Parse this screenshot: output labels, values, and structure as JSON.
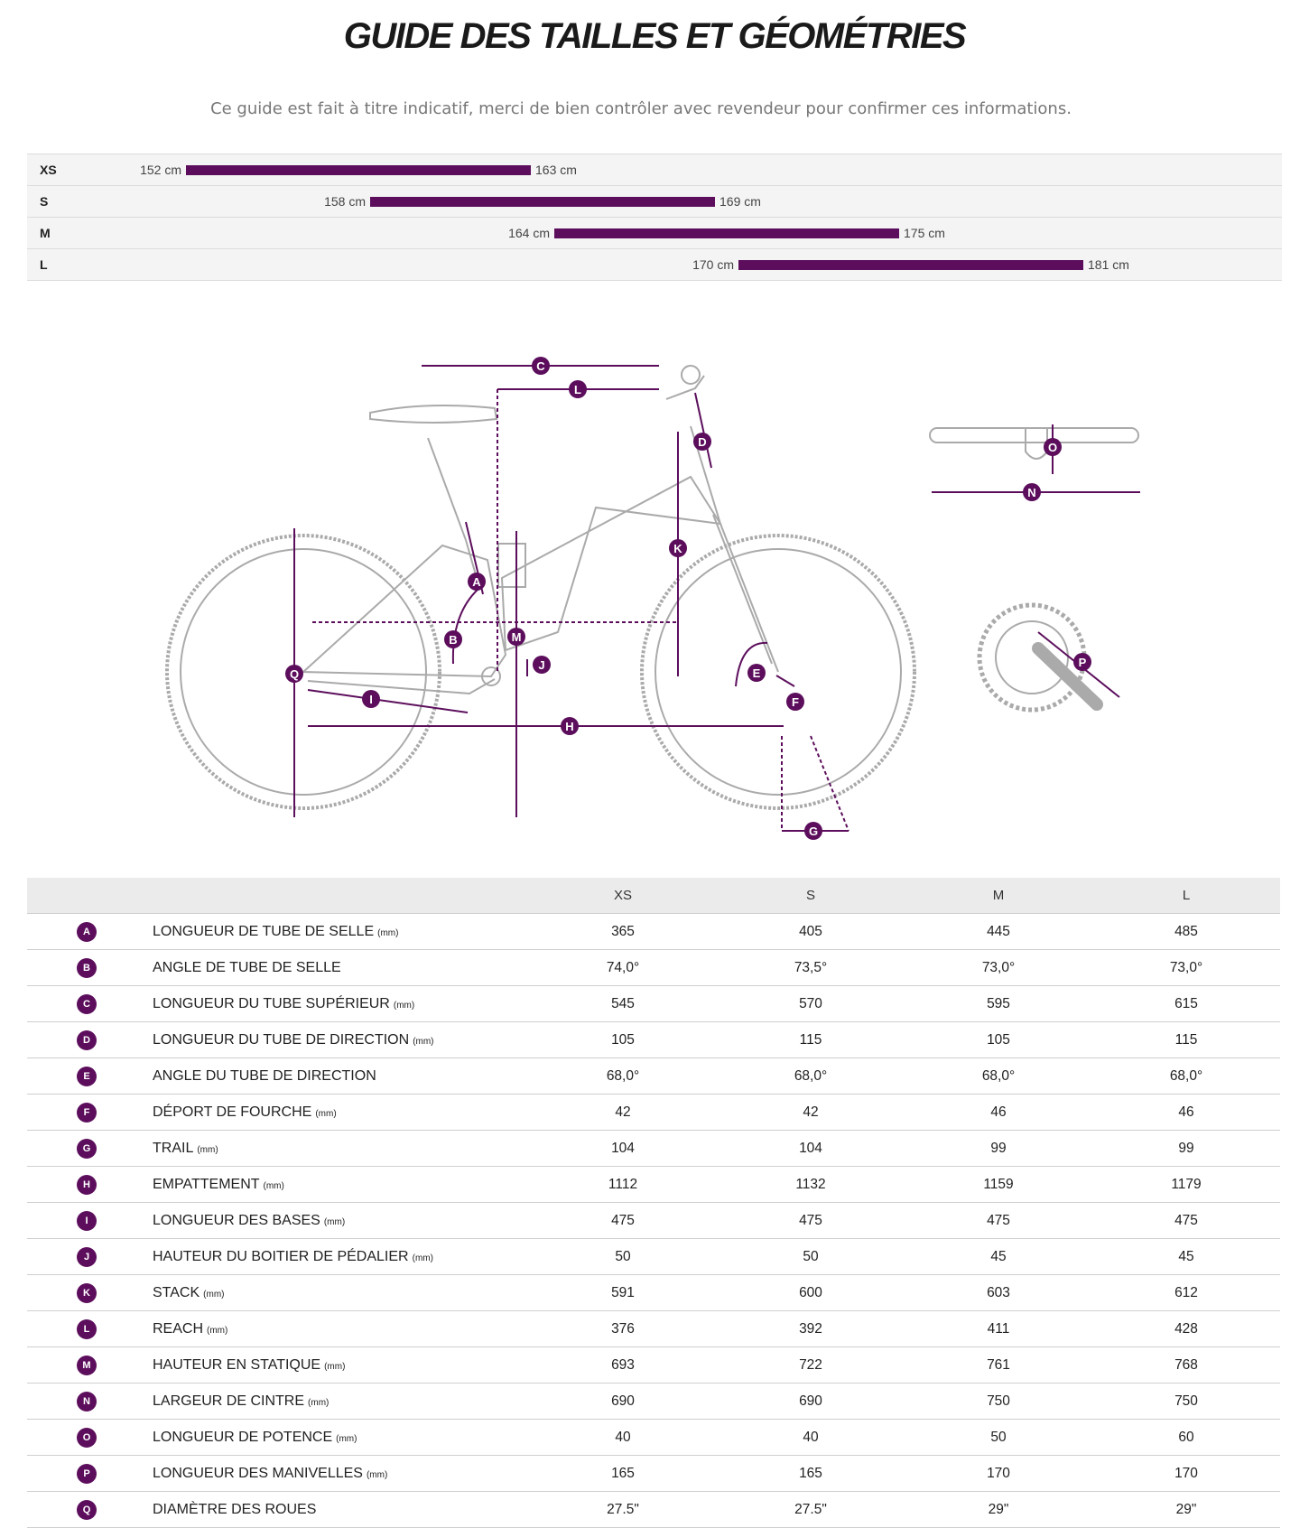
{
  "header": {
    "title": "GUIDE DES TAILLES ET GÉOMÉTRIES",
    "subtitle": "Ce guide est fait à titre indicatif, merci de bien contrôler avec revendeur pour confirmer ces informations."
  },
  "size_guide": {
    "rows": [
      {
        "size": "XS",
        "min": "152 cm",
        "max": "163 cm"
      },
      {
        "size": "S",
        "min": "158 cm",
        "max": "169 cm"
      },
      {
        "size": "M",
        "min": "164 cm",
        "max": "175 cm"
      },
      {
        "size": "L",
        "min": "170 cm",
        "max": "181 cm"
      }
    ]
  },
  "geometry": {
    "columns": [
      "XS",
      "S",
      "M",
      "L"
    ],
    "rows": [
      {
        "letter": "A",
        "label": "LONGUEUR DE TUBE DE SELLE",
        "unit": "(mm)",
        "values": [
          "365",
          "405",
          "445",
          "485"
        ]
      },
      {
        "letter": "B",
        "label": "ANGLE DE TUBE DE SELLE",
        "values": [
          "74,0°",
          "73,5°",
          "73,0°",
          "73,0°"
        ]
      },
      {
        "letter": "C",
        "label": "LONGUEUR DU TUBE SUPÉRIEUR",
        "unit": "(mm)",
        "values": [
          "545",
          "570",
          "595",
          "615"
        ]
      },
      {
        "letter": "D",
        "label": "LONGUEUR DU TUBE DE DIRECTION",
        "unit": "(mm)",
        "values": [
          "105",
          "115",
          "105",
          "115"
        ]
      },
      {
        "letter": "E",
        "label": "ANGLE DU TUBE DE DIRECTION",
        "values": [
          "68,0°",
          "68,0°",
          "68,0°",
          "68,0°"
        ]
      },
      {
        "letter": "F",
        "label": "DÉPORT DE FOURCHE",
        "unit": "(mm)",
        "values": [
          "42",
          "42",
          "46",
          "46"
        ]
      },
      {
        "letter": "G",
        "label": "TRAIL",
        "unit": "(mm)",
        "values": [
          "104",
          "104",
          "99",
          "99"
        ]
      },
      {
        "letter": "H",
        "label": "EMPATTEMENT",
        "unit": "(mm)",
        "values": [
          "1112",
          "1132",
          "1159",
          "1179"
        ]
      },
      {
        "letter": "I",
        "label": "LONGUEUR DES BASES",
        "unit": "(mm)",
        "values": [
          "475",
          "475",
          "475",
          "475"
        ]
      },
      {
        "letter": "J",
        "label": "HAUTEUR DU BOITIER DE PÉDALIER",
        "unit": "(mm)",
        "values": [
          "50",
          "50",
          "45",
          "45"
        ]
      },
      {
        "letter": "K",
        "label": "STACK",
        "unit": "(mm)",
        "values": [
          "591",
          "600",
          "603",
          "612"
        ]
      },
      {
        "letter": "L",
        "label": "REACH",
        "unit": "(mm)",
        "values": [
          "376",
          "392",
          "411",
          "428"
        ]
      },
      {
        "letter": "M",
        "label": "HAUTEUR EN STATIQUE",
        "unit": "(mm)",
        "values": [
          "693",
          "722",
          "761",
          "768"
        ]
      },
      {
        "letter": "N",
        "label": "LARGEUR DE CINTRE",
        "unit": "(mm)",
        "values": [
          "690",
          "690",
          "750",
          "750"
        ]
      },
      {
        "letter": "O",
        "label": "LONGUEUR DE POTENCE",
        "unit": "(mm)",
        "values": [
          "40",
          "40",
          "50",
          "60"
        ]
      },
      {
        "letter": "P",
        "label": "LONGUEUR DES MANIVELLES",
        "unit": "(mm)",
        "values": [
          "165",
          "165",
          "170",
          "170"
        ]
      },
      {
        "letter": "Q",
        "label": "DIAMÈTRE DES ROUES",
        "values": [
          "27.5\"",
          "27.5\"",
          "29\"",
          "29\""
        ]
      }
    ]
  }
}
